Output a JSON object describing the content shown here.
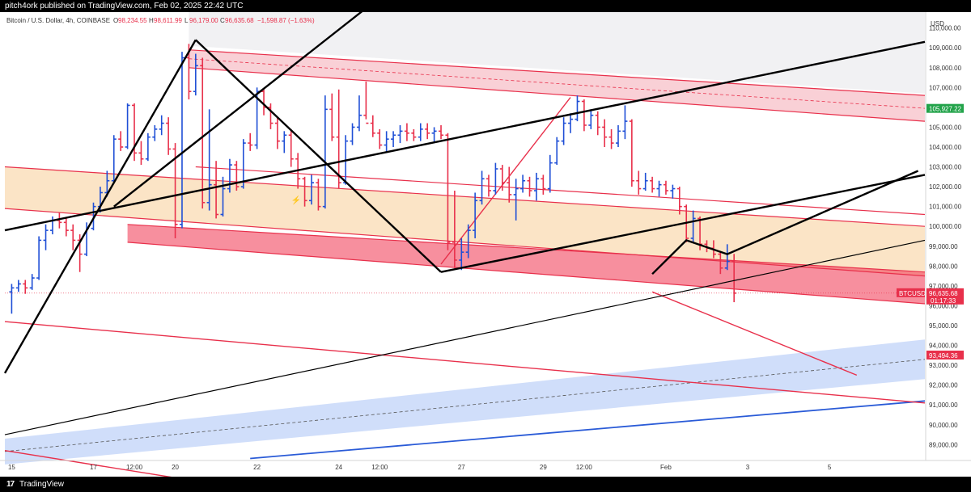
{
  "header": {
    "published": "pitch4ork published on TradingView.com, Feb 02, 2025 22:42 UTC"
  },
  "footer": {
    "logo": "17",
    "brand": "TradingView"
  },
  "chart_data": {
    "type": "candlestick",
    "symbol_title": "Bitcoin / U.S. Dollar, 4h, COINBASE",
    "ohlc_labels": [
      {
        "key": "O",
        "value": "98,234.55"
      },
      {
        "key": "H",
        "value": "98,611.99"
      },
      {
        "key": "L",
        "value": "96,179.00"
      },
      {
        "key": "C",
        "value": "96,635.68"
      }
    ],
    "change": "−1,598.87 (−1.63%)",
    "currency": "USD",
    "x_ticks": [
      {
        "label": "15",
        "x": 0
      },
      {
        "label": "17",
        "x": 12
      },
      {
        "label": "12:00",
        "x": 18
      },
      {
        "label": "20",
        "x": 24
      },
      {
        "label": "22",
        "x": 36
      },
      {
        "label": "24",
        "x": 48
      },
      {
        "label": "12:00",
        "x": 54
      },
      {
        "label": "27",
        "x": 66
      },
      {
        "label": "29",
        "x": 78
      },
      {
        "label": "12:00",
        "x": 84
      },
      {
        "label": "Feb",
        "x": 96
      },
      {
        "label": "3",
        "x": 108
      },
      {
        "label": "5",
        "x": 120
      }
    ],
    "y_ticks": [
      89000,
      90000,
      91000,
      92000,
      93000,
      94000,
      95000,
      96000,
      97000,
      98000,
      99000,
      100000,
      101000,
      102000,
      103000,
      104000,
      105000,
      106000,
      107000,
      108000,
      109000,
      110000
    ],
    "y_range": [
      88200,
      110800
    ],
    "x_range": [
      -1,
      134
    ],
    "price_labels": [
      {
        "value": 105927.22,
        "text": "105,927.22",
        "color": "#22a34a"
      },
      {
        "value": 96635.68,
        "text": "96,635.68",
        "sub": "01:17:33",
        "tag": "BTCUSD",
        "color": "#e8304b"
      },
      {
        "value": 93494.36,
        "text": "93,494.36",
        "color": "#e8304b"
      }
    ],
    "candles": [
      [
        96700,
        97100,
        95600,
        96900
      ],
      [
        96900,
        97300,
        96700,
        97100
      ],
      [
        97100,
        97300,
        96600,
        96900
      ],
      [
        96900,
        97600,
        96800,
        97400
      ],
      [
        97400,
        99500,
        97300,
        99300
      ],
      [
        99300,
        100100,
        98800,
        99800
      ],
      [
        99800,
        100500,
        99600,
        100300
      ],
      [
        100300,
        100700,
        99900,
        100200
      ],
      [
        100200,
        100400,
        99500,
        99800
      ],
      [
        99800,
        100100,
        98800,
        99300
      ],
      [
        99300,
        99600,
        97700,
        98600
      ],
      [
        98600,
        100200,
        98500,
        99900
      ],
      [
        99900,
        101200,
        99800,
        101000
      ],
      [
        101000,
        102000,
        100700,
        101700
      ],
      [
        101700,
        102800,
        101500,
        102300
      ],
      [
        102300,
        104600,
        102200,
        104400
      ],
      [
        104400,
        104800,
        103800,
        104000
      ],
      [
        104000,
        106200,
        103900,
        106100
      ],
      [
        106100,
        106200,
        103300,
        103700
      ],
      [
        103700,
        104300,
        103100,
        103400
      ],
      [
        103400,
        104700,
        103300,
        104500
      ],
      [
        104500,
        105100,
        104300,
        104900
      ],
      [
        104900,
        105600,
        104600,
        105200
      ],
      [
        105200,
        105500,
        103600,
        103900
      ],
      [
        103900,
        104200,
        99400,
        100100
      ],
      [
        100100,
        108800,
        99900,
        108500
      ],
      [
        108500,
        109200,
        106400,
        106800
      ],
      [
        106800,
        108700,
        106600,
        108100
      ],
      [
        108100,
        108500,
        100900,
        101200
      ],
      [
        101200,
        105900,
        100800,
        102100
      ],
      [
        102100,
        103300,
        100400,
        100600
      ],
      [
        100600,
        102500,
        100500,
        101900
      ],
      [
        101900,
        103400,
        101700,
        103100
      ],
      [
        103100,
        103300,
        101800,
        102000
      ],
      [
        102000,
        104400,
        101900,
        104200
      ],
      [
        104200,
        104700,
        103800,
        104100
      ],
      [
        104100,
        107000,
        103900,
        106800
      ],
      [
        106800,
        106900,
        105600,
        106000
      ],
      [
        106000,
        106200,
        104900,
        105200
      ],
      [
        105200,
        105500,
        103900,
        104300
      ],
      [
        104300,
        104800,
        103700,
        104600
      ],
      [
        104600,
        104900,
        103000,
        103400
      ],
      [
        103400,
        103700,
        101900,
        102400
      ],
      [
        102400,
        102500,
        101000,
        101300
      ],
      [
        101300,
        102600,
        101100,
        102200
      ],
      [
        102200,
        102400,
        100800,
        101000
      ],
      [
        101000,
        106600,
        100900,
        105900
      ],
      [
        105900,
        106700,
        104300,
        104500
      ],
      [
        104500,
        106900,
        101900,
        102200
      ],
      [
        102200,
        104600,
        102100,
        104300
      ],
      [
        104300,
        105200,
        104100,
        105000
      ],
      [
        105000,
        106600,
        104800,
        105600
      ],
      [
        105600,
        107300,
        105400,
        105200
      ],
      [
        105200,
        105600,
        104500,
        104700
      ],
      [
        104700,
        104900,
        103900,
        104100
      ],
      [
        104100,
        104800,
        103700,
        104400
      ],
      [
        104400,
        104800,
        104000,
        104600
      ],
      [
        104600,
        105100,
        104200,
        104800
      ],
      [
        104800,
        105200,
        104300,
        104700
      ],
      [
        104700,
        104900,
        104300,
        104500
      ],
      [
        104500,
        105200,
        104300,
        104900
      ],
      [
        104900,
        105200,
        104400,
        104700
      ],
      [
        104700,
        105000,
        104200,
        104800
      ],
      [
        104800,
        105100,
        104400,
        104600
      ],
      [
        104600,
        104700,
        98800,
        99200
      ],
      [
        99200,
        101800,
        97900,
        98300
      ],
      [
        98300,
        99400,
        97800,
        98700
      ],
      [
        98700,
        100100,
        98400,
        99800
      ],
      [
        99800,
        101700,
        99400,
        101300
      ],
      [
        101300,
        102800,
        101100,
        102400
      ],
      [
        102400,
        102600,
        101500,
        101800
      ],
      [
        101800,
        103200,
        101600,
        102900
      ],
      [
        102900,
        103100,
        101800,
        102200
      ],
      [
        102200,
        103000,
        101200,
        101600
      ],
      [
        101600,
        102400,
        100300,
        101900
      ],
      [
        101900,
        102600,
        101700,
        102300
      ],
      [
        102300,
        102500,
        101500,
        101800
      ],
      [
        101800,
        102700,
        101300,
        102400
      ],
      [
        102400,
        102600,
        101600,
        101900
      ],
      [
        101900,
        103600,
        101700,
        103200
      ],
      [
        103200,
        104500,
        103100,
        104300
      ],
      [
        104300,
        105500,
        104100,
        105200
      ],
      [
        105200,
        105700,
        104700,
        105400
      ],
      [
        105400,
        106600,
        105300,
        106300
      ],
      [
        106300,
        106400,
        104800,
        105100
      ],
      [
        105100,
        105900,
        104900,
        105600
      ],
      [
        105600,
        105800,
        104600,
        105000
      ],
      [
        105000,
        105400,
        104000,
        104500
      ],
      [
        104500,
        104900,
        103900,
        104200
      ],
      [
        104200,
        105100,
        104000,
        104800
      ],
      [
        104800,
        106100,
        104400,
        105300
      ],
      [
        105300,
        105400,
        102000,
        102300
      ],
      [
        102300,
        102800,
        101600,
        101900
      ],
      [
        101900,
        102700,
        101800,
        102300
      ],
      [
        102300,
        102500,
        101700,
        101900
      ],
      [
        101900,
        102300,
        101500,
        102100
      ],
      [
        102100,
        102300,
        101600,
        101800
      ],
      [
        101800,
        102100,
        101400,
        101900
      ],
      [
        101900,
        102000,
        100600,
        101000
      ],
      [
        101000,
        101100,
        99200,
        99400
      ],
      [
        99400,
        100800,
        99200,
        100400
      ],
      [
        100400,
        100500,
        98800,
        99100
      ],
      [
        99100,
        99300,
        98700,
        98900
      ],
      [
        98900,
        99300,
        98400,
        98600
      ],
      [
        98600,
        98700,
        97600,
        97900
      ],
      [
        97900,
        99100,
        97800,
        98234
      ],
      [
        98234,
        98612,
        96179,
        96636
      ]
    ],
    "overlays": {
      "upper_channel": {
        "line1": [
          [
            26,
            108900
          ],
          [
            134,
            106600
          ]
        ],
        "line2": [
          [
            26,
            108000
          ],
          [
            134,
            105300
          ]
        ],
        "mid": [
          [
            26,
            108450
          ],
          [
            134,
            105950
          ]
        ]
      },
      "orange_channel": {
        "upper": [
          [
            -1,
            103000
          ],
          [
            134,
            100000
          ]
        ],
        "lower": [
          [
            -1,
            100900
          ],
          [
            134,
            97500
          ]
        ]
      },
      "red_zone": {
        "upper": [
          [
            17,
            100100
          ],
          [
            134,
            97700
          ]
        ],
        "lower": [
          [
            17,
            99200
          ],
          [
            134,
            96100
          ]
        ]
      },
      "grey_fill": {
        "upper": [
          [
            26,
            110800
          ],
          [
            134,
            110800
          ]
        ],
        "lower": [
          [
            26,
            109100
          ],
          [
            134,
            106700
          ]
        ]
      },
      "blue_channel": {
        "upper": [
          [
            -1,
            89300
          ],
          [
            134,
            94300
          ]
        ],
        "lower": [
          [
            -1,
            88000
          ],
          [
            134,
            92300
          ]
        ],
        "mid": [
          [
            -1,
            88650
          ],
          [
            134,
            93300
          ]
        ]
      },
      "blue_line": [
        [
          35,
          88300
        ],
        [
          134,
          91200
        ]
      ],
      "red_descending": [
        [
          -1,
          95200
        ],
        [
          134,
          91100
        ]
      ],
      "red_short": [
        [
          -1,
          88700
        ],
        [
          30,
          87000
        ]
      ],
      "red_upper_line": [
        [
          27,
          103000
        ],
        [
          134,
          100600
        ]
      ],
      "red_forecast_1": [
        [
          63,
          98100
        ],
        [
          82,
          106500
        ]
      ],
      "red_forecast_2": [
        [
          94,
          96700
        ],
        [
          124,
          92500
        ]
      ],
      "dotted_price": [
        [
          -1,
          96636
        ],
        [
          134,
          96636
        ]
      ],
      "black_lines": [
        [
          [
            -1,
            99800
          ],
          [
            134,
            109300
          ]
        ],
        [
          [
            -1,
            92600
          ],
          [
            27,
            109400
          ]
        ],
        [
          [
            27,
            109400
          ],
          [
            63,
            97700
          ]
        ],
        [
          [
            63,
            97700
          ],
          [
            134,
            102600
          ]
        ],
        [
          [
            -1,
            89500
          ],
          [
            134,
            99300
          ]
        ],
        [
          [
            15,
            101000
          ],
          [
            52,
            111000
          ]
        ],
        [
          [
            94,
            97600
          ],
          [
            99,
            99300
          ],
          [
            105,
            98600
          ],
          [
            133,
            102800
          ]
        ]
      ],
      "sparkle": {
        "x": 41,
        "y": 101200
      }
    }
  }
}
